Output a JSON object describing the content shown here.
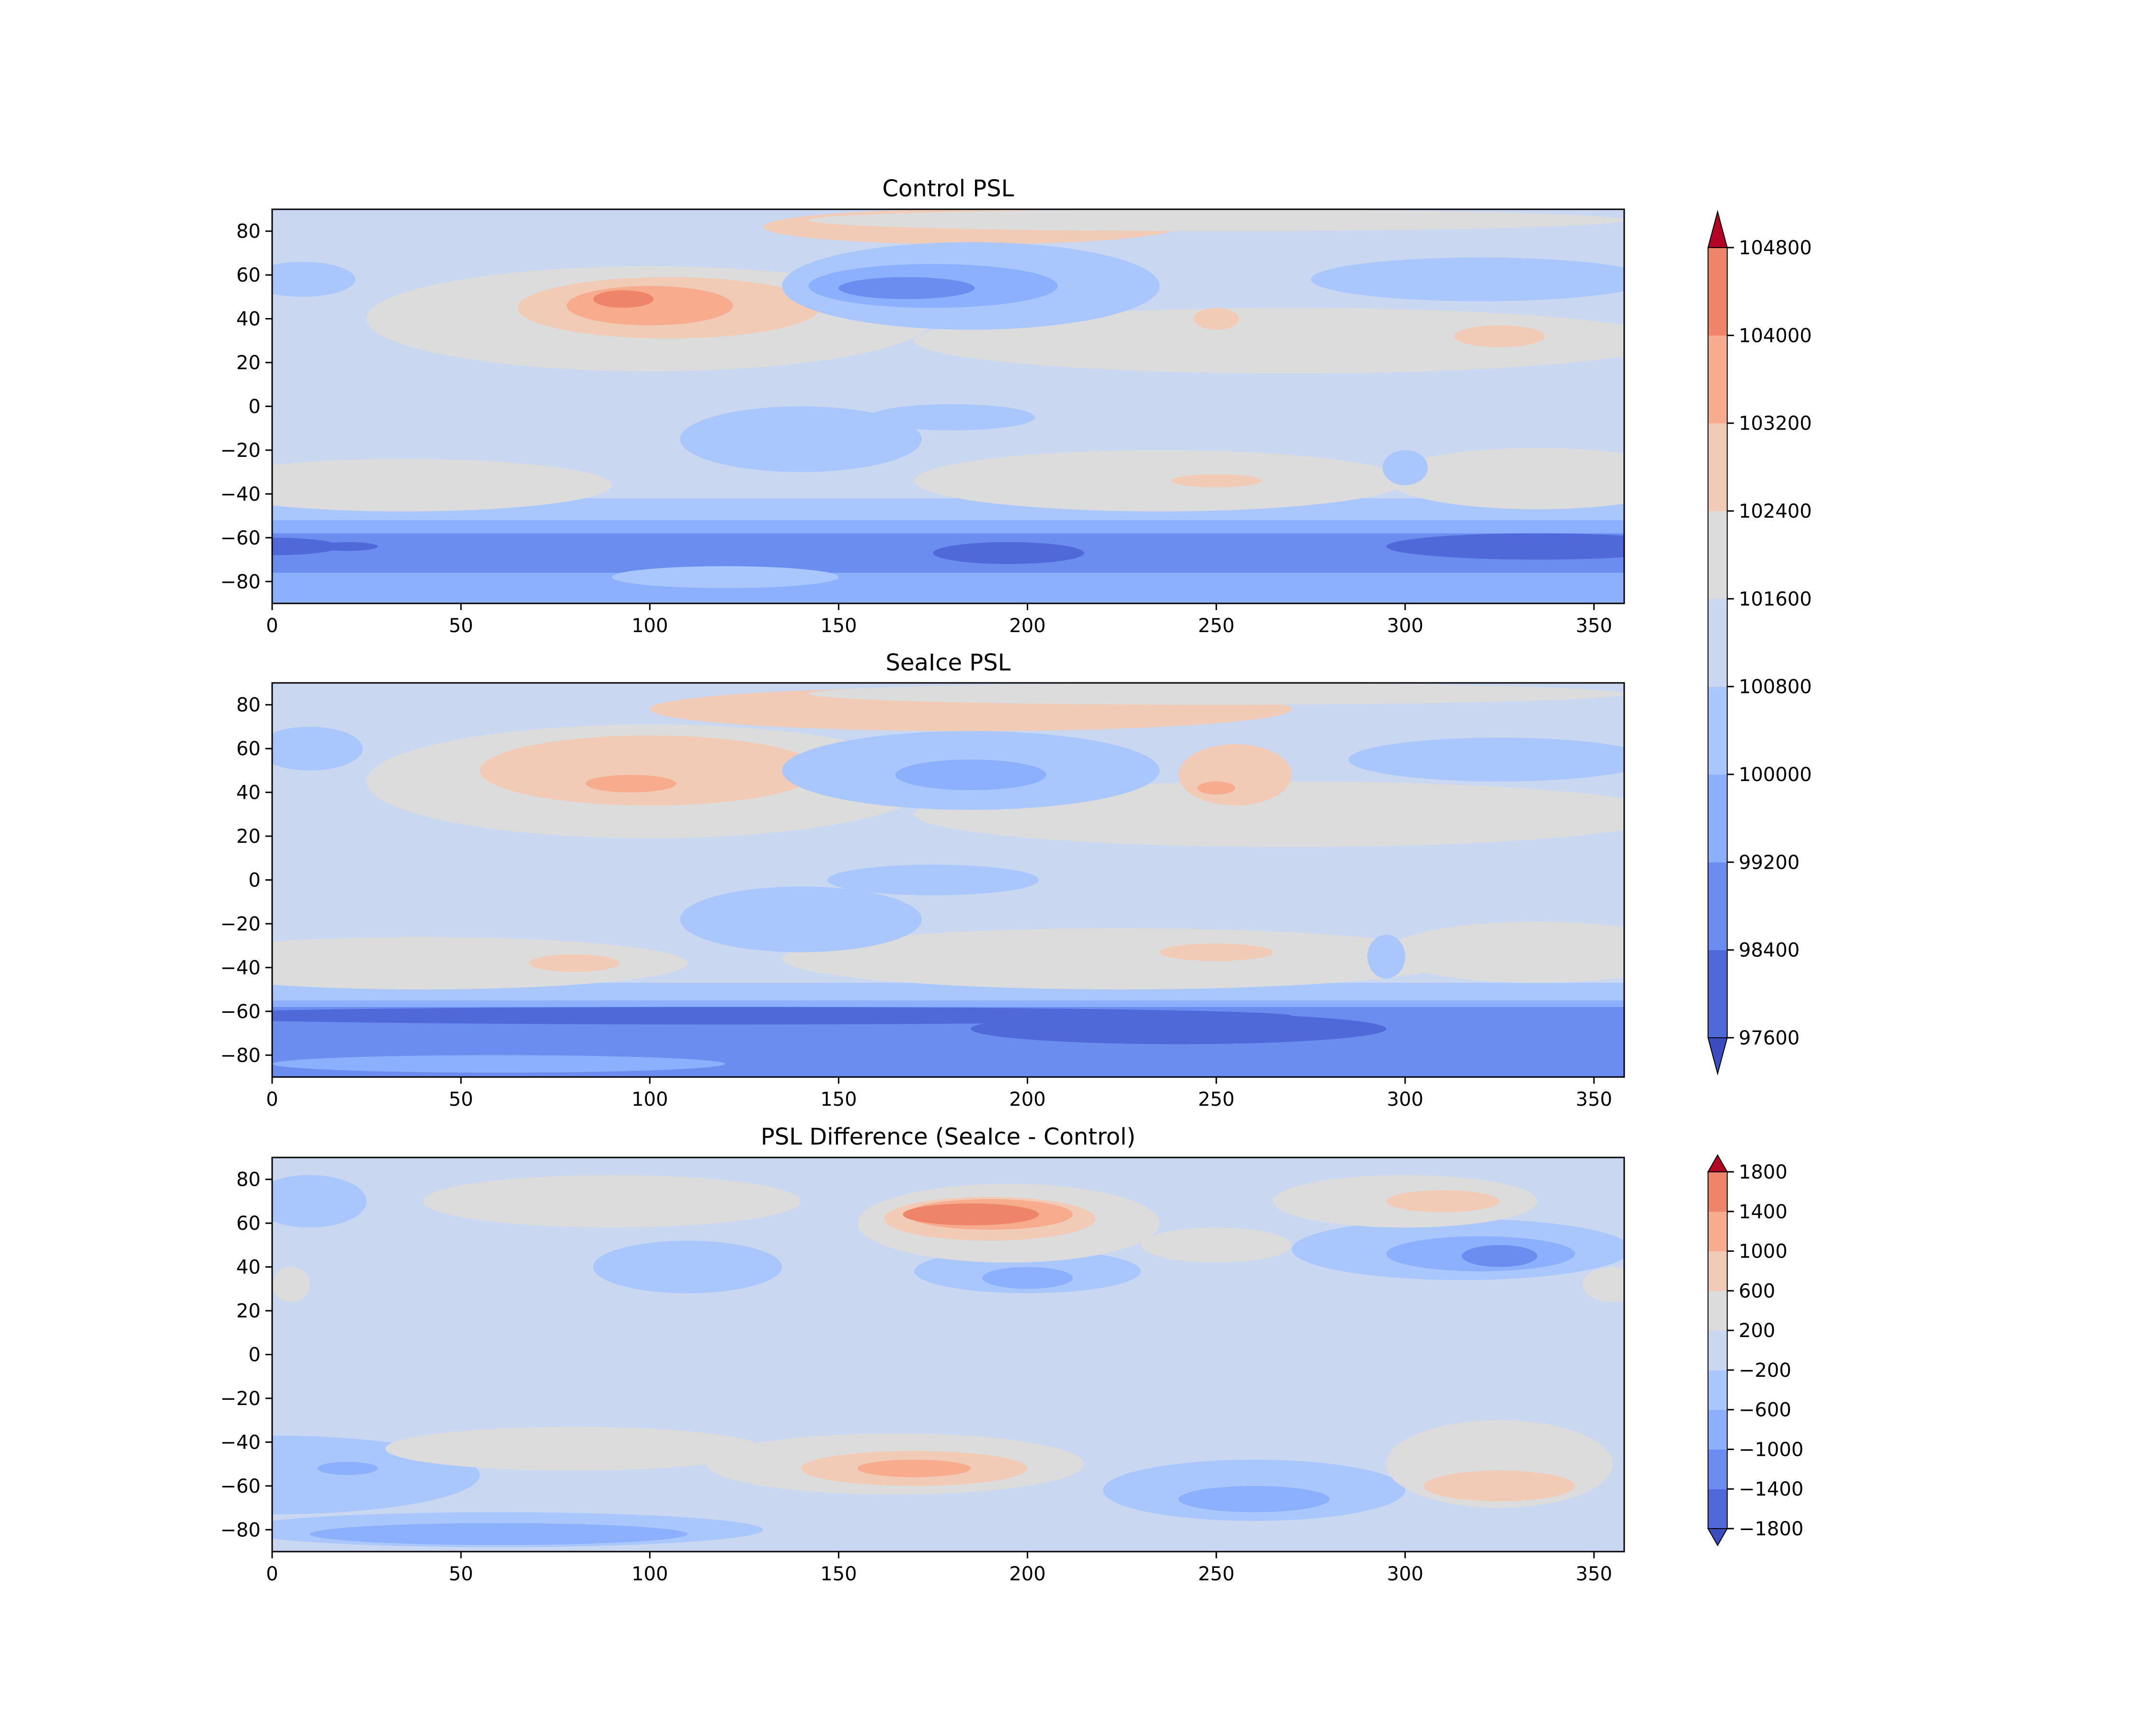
{
  "chart_data": [
    {
      "type": "heatmap",
      "plot": "filled-contour-map",
      "title": "Control PSL",
      "xlim": [
        0,
        358
      ],
      "ylim": [
        -90,
        90
      ],
      "x_ticks": [
        0,
        50,
        100,
        150,
        200,
        250,
        300,
        350
      ],
      "y_ticks": [
        80,
        60,
        40,
        20,
        0,
        -20,
        -40,
        -60,
        -80
      ],
      "colormap": "coolwarm",
      "background_level": 101200,
      "features": [
        {
          "kind": "band",
          "lat_from": -90,
          "lat_to": -42,
          "value": 100400
        },
        {
          "kind": "band",
          "lat_from": -90,
          "lat_to": -52,
          "value": 99600
        },
        {
          "kind": "band",
          "lat_from": -90,
          "lat_to": -58,
          "value": 98800
        },
        {
          "kind": "band",
          "lat_from": -90,
          "lat_to": -76,
          "value": 99600
        },
        {
          "kind": "blob",
          "lon": 120,
          "lat": -78,
          "rx": 30,
          "ry": 5,
          "value": 100400
        },
        {
          "kind": "blob",
          "lon": 0,
          "lat": -64,
          "rx": 18,
          "ry": 4,
          "value": 98000
        },
        {
          "kind": "blob",
          "lon": 20,
          "lat": -64,
          "rx": 8,
          "ry": 2,
          "value": 98000
        },
        {
          "kind": "blob",
          "lon": 195,
          "lat": -67,
          "rx": 20,
          "ry": 5,
          "value": 98000
        },
        {
          "kind": "blob",
          "lon": 335,
          "lat": -64,
          "rx": 40,
          "ry": 6,
          "value": 98000
        },
        {
          "kind": "blob",
          "lon": 100,
          "lat": 40,
          "rx": 75,
          "ry": 24,
          "value": 102000
        },
        {
          "kind": "blob",
          "lon": 185,
          "lat": 82,
          "rx": 55,
          "ry": 8,
          "value": 102800
        },
        {
          "kind": "blob",
          "lon": 105,
          "lat": 45,
          "rx": 40,
          "ry": 14,
          "value": 102800
        },
        {
          "kind": "blob",
          "lon": 100,
          "lat": 46,
          "rx": 22,
          "ry": 9,
          "value": 103600
        },
        {
          "kind": "blob",
          "lon": 93,
          "lat": 49,
          "rx": 8,
          "ry": 4,
          "value": 104400
        },
        {
          "kind": "blob",
          "lon": 270,
          "lat": 30,
          "rx": 100,
          "ry": 15,
          "value": 102000
        },
        {
          "kind": "blob",
          "lon": 250,
          "lat": 85,
          "rx": 108,
          "ry": 5,
          "value": 102000
        },
        {
          "kind": "blob",
          "lon": 325,
          "lat": 32,
          "rx": 12,
          "ry": 5,
          "value": 102800
        },
        {
          "kind": "blob",
          "lon": 250,
          "lat": 40,
          "rx": 6,
          "ry": 5,
          "value": 102800
        },
        {
          "kind": "blob",
          "lon": 35,
          "lat": -36,
          "rx": 55,
          "ry": 12,
          "value": 102000
        },
        {
          "kind": "blob",
          "lon": 235,
          "lat": -34,
          "rx": 65,
          "ry": 14,
          "value": 102000
        },
        {
          "kind": "blob",
          "lon": 250,
          "lat": -34,
          "rx": 12,
          "ry": 3,
          "value": 102800
        },
        {
          "kind": "blob",
          "lon": 335,
          "lat": -33,
          "rx": 40,
          "ry": 14,
          "value": 102000
        },
        {
          "kind": "blob",
          "lon": 185,
          "lat": 55,
          "rx": 50,
          "ry": 20,
          "value": 100400
        },
        {
          "kind": "blob",
          "lon": 175,
          "lat": 55,
          "rx": 33,
          "ry": 10,
          "value": 99600
        },
        {
          "kind": "blob",
          "lon": 168,
          "lat": 54,
          "rx": 18,
          "ry": 5,
          "value": 98800
        },
        {
          "kind": "blob",
          "lon": 320,
          "lat": 58,
          "rx": 45,
          "ry": 10,
          "value": 100400
        },
        {
          "kind": "blob",
          "lon": 8,
          "lat": 58,
          "rx": 14,
          "ry": 8,
          "value": 100400
        },
        {
          "kind": "blob",
          "lon": 140,
          "lat": -15,
          "rx": 32,
          "ry": 15,
          "value": 100400
        },
        {
          "kind": "blob",
          "lon": 180,
          "lat": -5,
          "rx": 22,
          "ry": 6,
          "value": 100400
        },
        {
          "kind": "blob",
          "lon": 300,
          "lat": -28,
          "rx": 6,
          "ry": 8,
          "value": 100400
        }
      ]
    },
    {
      "type": "heatmap",
      "plot": "filled-contour-map",
      "title": "SeaIce PSL",
      "xlim": [
        0,
        358
      ],
      "ylim": [
        -90,
        90
      ],
      "x_ticks": [
        0,
        50,
        100,
        150,
        200,
        250,
        300,
        350
      ],
      "y_ticks": [
        80,
        60,
        40,
        20,
        0,
        -20,
        -40,
        -60,
        -80
      ],
      "colormap": "coolwarm",
      "background_level": 101200,
      "features": [
        {
          "kind": "band",
          "lat_from": -90,
          "lat_to": -47,
          "value": 100400
        },
        {
          "kind": "band",
          "lat_from": -90,
          "lat_to": -55,
          "value": 99600
        },
        {
          "kind": "band",
          "lat_from": -90,
          "lat_to": -58,
          "value": 98800
        },
        {
          "kind": "blob",
          "lon": 120,
          "lat": -62,
          "rx": 150,
          "ry": 4,
          "value": 98000
        },
        {
          "kind": "blob",
          "lon": 240,
          "lat": -68,
          "rx": 55,
          "ry": 7,
          "value": 98000
        },
        {
          "kind": "blob",
          "lon": 60,
          "lat": -84,
          "rx": 60,
          "ry": 4,
          "value": 99600
        },
        {
          "kind": "blob",
          "lon": 100,
          "lat": 45,
          "rx": 75,
          "ry": 26,
          "value": 102000
        },
        {
          "kind": "blob",
          "lon": 185,
          "lat": 78,
          "rx": 85,
          "ry": 10,
          "value": 102800
        },
        {
          "kind": "blob",
          "lon": 100,
          "lat": 50,
          "rx": 45,
          "ry": 16,
          "value": 102800
        },
        {
          "kind": "blob",
          "lon": 95,
          "lat": 44,
          "rx": 12,
          "ry": 4,
          "value": 103600
        },
        {
          "kind": "blob",
          "lon": 270,
          "lat": 30,
          "rx": 100,
          "ry": 15,
          "value": 102000
        },
        {
          "kind": "blob",
          "lon": 250,
          "lat": 85,
          "rx": 108,
          "ry": 5,
          "value": 102000
        },
        {
          "kind": "blob",
          "lon": 255,
          "lat": 48,
          "rx": 15,
          "ry": 14,
          "value": 102800
        },
        {
          "kind": "blob",
          "lon": 250,
          "lat": 42,
          "rx": 5,
          "ry": 3,
          "value": 103600
        },
        {
          "kind": "blob",
          "lon": 40,
          "lat": -38,
          "rx": 70,
          "ry": 12,
          "value": 102000
        },
        {
          "kind": "blob",
          "lon": 80,
          "lat": -38,
          "rx": 12,
          "ry": 4,
          "value": 102800
        },
        {
          "kind": "blob",
          "lon": 225,
          "lat": -36,
          "rx": 90,
          "ry": 14,
          "value": 102000
        },
        {
          "kind": "blob",
          "lon": 250,
          "lat": -33,
          "rx": 15,
          "ry": 4,
          "value": 102800
        },
        {
          "kind": "blob",
          "lon": 335,
          "lat": -33,
          "rx": 40,
          "ry": 14,
          "value": 102000
        },
        {
          "kind": "blob",
          "lon": 185,
          "lat": 50,
          "rx": 50,
          "ry": 18,
          "value": 100400
        },
        {
          "kind": "blob",
          "lon": 185,
          "lat": 48,
          "rx": 20,
          "ry": 7,
          "value": 99600
        },
        {
          "kind": "blob",
          "lon": 325,
          "lat": 55,
          "rx": 40,
          "ry": 10,
          "value": 100400
        },
        {
          "kind": "blob",
          "lon": 10,
          "lat": 60,
          "rx": 14,
          "ry": 10,
          "value": 100400
        },
        {
          "kind": "blob",
          "lon": 140,
          "lat": -18,
          "rx": 32,
          "ry": 15,
          "value": 100400
        },
        {
          "kind": "blob",
          "lon": 175,
          "lat": 0,
          "rx": 28,
          "ry": 7,
          "value": 100400
        },
        {
          "kind": "blob",
          "lon": 295,
          "lat": -35,
          "rx": 5,
          "ry": 10,
          "value": 100400
        }
      ]
    },
    {
      "type": "heatmap",
      "plot": "filled-contour-map",
      "title": "PSL Difference (SeaIce - Control)",
      "xlim": [
        0,
        358
      ],
      "ylim": [
        -90,
        90
      ],
      "x_ticks": [
        0,
        50,
        100,
        150,
        200,
        250,
        300,
        350
      ],
      "y_ticks": [
        80,
        60,
        40,
        20,
        0,
        -20,
        -40,
        -60,
        -80
      ],
      "colormap": "coolwarm",
      "background_level": 0,
      "features": [
        {
          "kind": "blob",
          "lon": 0,
          "lat": -55,
          "rx": 55,
          "ry": 18,
          "value": -400
        },
        {
          "kind": "blob",
          "lon": 60,
          "lat": -80,
          "rx": 70,
          "ry": 8,
          "value": -400
        },
        {
          "kind": "blob",
          "lon": 20,
          "lat": -52,
          "rx": 8,
          "ry": 3,
          "value": -800
        },
        {
          "kind": "blob",
          "lon": 60,
          "lat": -82,
          "rx": 50,
          "ry": 5,
          "value": -800
        },
        {
          "kind": "blob",
          "lon": 260,
          "lat": -62,
          "rx": 40,
          "ry": 14,
          "value": -400
        },
        {
          "kind": "blob",
          "lon": 260,
          "lat": -66,
          "rx": 20,
          "ry": 6,
          "value": -800
        },
        {
          "kind": "blob",
          "lon": 315,
          "lat": 48,
          "rx": 45,
          "ry": 14,
          "value": -400
        },
        {
          "kind": "blob",
          "lon": 320,
          "lat": 46,
          "rx": 25,
          "ry": 8,
          "value": -800
        },
        {
          "kind": "blob",
          "lon": 325,
          "lat": 45,
          "rx": 10,
          "ry": 5,
          "value": -1200
        },
        {
          "kind": "blob",
          "lon": 200,
          "lat": 38,
          "rx": 30,
          "ry": 10,
          "value": -400
        },
        {
          "kind": "blob",
          "lon": 200,
          "lat": 35,
          "rx": 12,
          "ry": 5,
          "value": -800
        },
        {
          "kind": "blob",
          "lon": 10,
          "lat": 70,
          "rx": 15,
          "ry": 12,
          "value": -400
        },
        {
          "kind": "blob",
          "lon": 110,
          "lat": 40,
          "rx": 25,
          "ry": 12,
          "value": -400
        },
        {
          "kind": "blob",
          "lon": 195,
          "lat": 60,
          "rx": 40,
          "ry": 18,
          "value": 400
        },
        {
          "kind": "blob",
          "lon": 190,
          "lat": 62,
          "rx": 28,
          "ry": 10,
          "value": 800
        },
        {
          "kind": "blob",
          "lon": 190,
          "lat": 64,
          "rx": 22,
          "ry": 7,
          "value": 1200
        },
        {
          "kind": "blob",
          "lon": 185,
          "lat": 64,
          "rx": 18,
          "ry": 5,
          "value": 1600
        },
        {
          "kind": "blob",
          "lon": 250,
          "lat": 50,
          "rx": 20,
          "ry": 8,
          "value": 400
        },
        {
          "kind": "blob",
          "lon": 300,
          "lat": 70,
          "rx": 35,
          "ry": 12,
          "value": 400
        },
        {
          "kind": "blob",
          "lon": 90,
          "lat": 70,
          "rx": 50,
          "ry": 12,
          "value": 400
        },
        {
          "kind": "blob",
          "lon": 310,
          "lat": 70,
          "rx": 15,
          "ry": 5,
          "value": 800
        },
        {
          "kind": "blob",
          "lon": 355,
          "lat": 32,
          "rx": 8,
          "ry": 8,
          "value": 400
        },
        {
          "kind": "blob",
          "lon": 5,
          "lat": 32,
          "rx": 5,
          "ry": 8,
          "value": 400
        },
        {
          "kind": "blob",
          "lon": 165,
          "lat": -50,
          "rx": 50,
          "ry": 14,
          "value": 400
        },
        {
          "kind": "blob",
          "lon": 170,
          "lat": -52,
          "rx": 30,
          "ry": 8,
          "value": 800
        },
        {
          "kind": "blob",
          "lon": 170,
          "lat": -52,
          "rx": 15,
          "ry": 4,
          "value": 1200
        },
        {
          "kind": "blob",
          "lon": 80,
          "lat": -43,
          "rx": 50,
          "ry": 10,
          "value": 400
        },
        {
          "kind": "blob",
          "lon": 325,
          "lat": -50,
          "rx": 30,
          "ry": 20,
          "value": 400
        },
        {
          "kind": "blob",
          "lon": 325,
          "lat": -60,
          "rx": 20,
          "ry": 7,
          "value": 800
        }
      ]
    }
  ],
  "colorbars": [
    {
      "ticks": [
        "104800",
        "104000",
        "103200",
        "102400",
        "101600",
        "100800",
        "100000",
        "99200",
        "98400",
        "97600"
      ],
      "levels": [
        97600,
        98400,
        99200,
        100000,
        100800,
        101600,
        102400,
        103200,
        104000,
        104800
      ],
      "extend": "both"
    },
    {
      "ticks": [
        "1800",
        "1400",
        "1000",
        "600",
        "200",
        "−200",
        "−600",
        "−1000",
        "−1400",
        "−1800"
      ],
      "levels": [
        -1800,
        -1400,
        -1000,
        -600,
        -200,
        200,
        600,
        1000,
        1400,
        1800
      ],
      "extend": "both"
    }
  ],
  "colors": {
    "level_fills": [
      "#3b4cc0",
      "#4f69d9",
      "#6b8df0",
      "#8caffe",
      "#aac7fd",
      "#c9d7f0",
      "#dddcdc",
      "#f2cbb7",
      "#f7ac8e",
      "#ee8468",
      "#d65244",
      "#b40426"
    ],
    "axis": "#000000"
  }
}
